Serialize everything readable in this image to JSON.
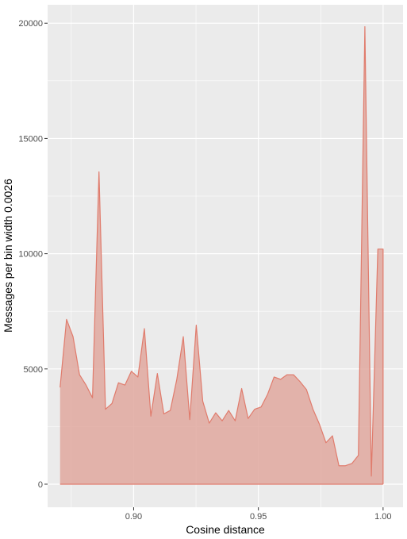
{
  "chart_data": {
    "type": "area",
    "title": "",
    "xlabel": "Cosine distance",
    "ylabel": "Messages per bin width 0.0026",
    "xlim": [
      0.8655,
      1.008
    ],
    "ylim": [
      -1000,
      20800
    ],
    "x_ticks": [
      0.9,
      0.95,
      1.0
    ],
    "x_tick_labels": [
      "0.90",
      "0.95",
      "1.00"
    ],
    "y_ticks": [
      0,
      5000,
      10000,
      15000,
      20000
    ],
    "y_tick_labels": [
      "0",
      "5000",
      "10000",
      "15000",
      "20000"
    ],
    "grid": true,
    "legend": "none",
    "colors": {
      "fill": "#e0a89f",
      "line": "#e07b6c",
      "panel": "#ebebeb",
      "grid": "#ffffff"
    },
    "x": [
      0.8705,
      0.8731,
      0.8757,
      0.8783,
      0.8809,
      0.8835,
      0.8861,
      0.8887,
      0.8913,
      0.8939,
      0.8965,
      0.8991,
      0.9017,
      0.9043,
      0.9069,
      0.9095,
      0.9121,
      0.9147,
      0.9173,
      0.9199,
      0.9225,
      0.9251,
      0.9277,
      0.9303,
      0.9329,
      0.9355,
      0.9381,
      0.9407,
      0.9433,
      0.9459,
      0.9485,
      0.9511,
      0.9537,
      0.9563,
      0.9589,
      0.9615,
      0.9641,
      0.9667,
      0.9693,
      0.9719,
      0.9745,
      0.9771,
      0.9797,
      0.9823,
      0.9849,
      0.9875,
      0.9901,
      0.9927,
      0.9953,
      0.9979,
      1.0
    ],
    "values": [
      4200,
      7150,
      6400,
      4750,
      4300,
      3750,
      13550,
      3250,
      3500,
      4400,
      4300,
      4900,
      4650,
      6750,
      2950,
      4800,
      3050,
      3200,
      4550,
      6400,
      2800,
      6900,
      3600,
      2650,
      3100,
      2750,
      3200,
      2750,
      4150,
      2850,
      3250,
      3350,
      3900,
      4650,
      4550,
      4750,
      4750,
      4450,
      4100,
      3250,
      2600,
      1800,
      2100,
      800,
      800,
      900,
      1250,
      19850,
      350,
      10200,
      10200
    ]
  }
}
